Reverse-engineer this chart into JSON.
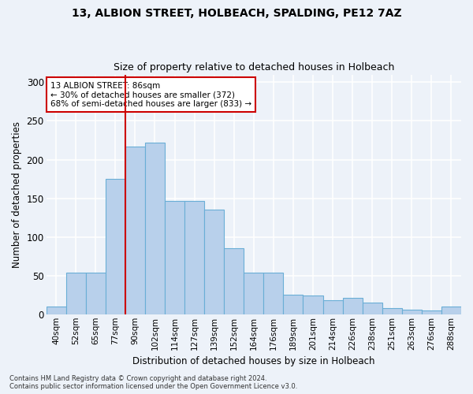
{
  "title1": "13, ALBION STREET, HOLBEACH, SPALDING, PE12 7AZ",
  "title2": "Size of property relative to detached houses in Holbeach",
  "xlabel": "Distribution of detached houses by size in Holbeach",
  "ylabel": "Number of detached properties",
  "bar_values": [
    10,
    54,
    54,
    175,
    217,
    222,
    147,
    146,
    135,
    85,
    54,
    54,
    25,
    24,
    18,
    21,
    15,
    8,
    6,
    5,
    10
  ],
  "x_labels": [
    "40sqm",
    "52sqm",
    "65sqm",
    "77sqm",
    "90sqm",
    "102sqm",
    "114sqm",
    "127sqm",
    "139sqm",
    "152sqm",
    "164sqm",
    "176sqm",
    "189sqm",
    "201sqm",
    "214sqm",
    "226sqm",
    "238sqm",
    "251sqm",
    "263sqm",
    "276sqm",
    "288sqm"
  ],
  "bar_color": "#b8d0eb",
  "bar_edge_color": "#6aaed6",
  "vline_x_idx": 4,
  "vline_color": "#cc0000",
  "annotation_text": "13 ALBION STREET: 86sqm\n← 30% of detached houses are smaller (372)\n68% of semi-detached houses are larger (833) →",
  "annotation_box_color": "#ffffff",
  "annotation_box_edge": "#cc0000",
  "background_color": "#edf2f9",
  "grid_color": "#ffffff",
  "footer1": "Contains HM Land Registry data © Crown copyright and database right 2024.",
  "footer2": "Contains public sector information licensed under the Open Government Licence v3.0.",
  "ylim": [
    0,
    310
  ],
  "yticks": [
    0,
    50,
    100,
    150,
    200,
    250,
    300
  ]
}
